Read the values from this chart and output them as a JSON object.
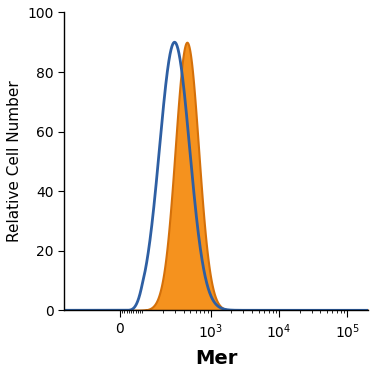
{
  "title": "",
  "xlabel": "Mer",
  "ylabel": "Relative Cell Number",
  "ylim": [
    0,
    100
  ],
  "blue_peak_log": 2.47,
  "blue_sigma_log": 0.22,
  "blue_amplitude": 90,
  "orange_peak_log": 2.65,
  "orange_sigma_log": 0.17,
  "orange_amplitude": 90,
  "blue_color": "#2E5FA3",
  "orange_color": "#F5921E",
  "orange_edge_color": "#D4700A",
  "bg_color": "#FFFFFF",
  "linewidth": 2.0,
  "xlabel_fontsize": 14,
  "ylabel_fontsize": 11,
  "tick_labelsize": 10,
  "xlabel_fontweight": "bold",
  "linthresh": 100,
  "linscale": 0.3
}
